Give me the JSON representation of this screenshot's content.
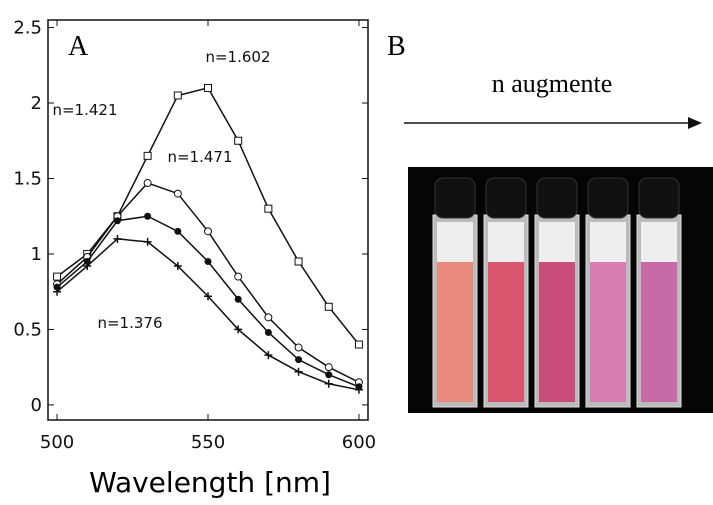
{
  "figure": {
    "labels": [
      "A",
      "B"
    ],
    "caption": "n augmente"
  },
  "chart_data": {
    "type": "line",
    "x_label": "Wavelength [nm]",
    "x": [
      500,
      510,
      520,
      530,
      540,
      550,
      560,
      570,
      580,
      590,
      600
    ],
    "series": [
      {
        "name": "n=1.602",
        "color": "#111111",
        "marker": "square",
        "values": [
          0.85,
          1.0,
          1.25,
          1.65,
          2.05,
          2.1,
          1.75,
          1.3,
          0.95,
          0.65,
          0.4
        ]
      },
      {
        "name": "n=1.471",
        "color": "#111111",
        "marker": "circle",
        "values": [
          0.8,
          0.98,
          1.25,
          1.47,
          1.4,
          1.15,
          0.85,
          0.58,
          0.38,
          0.25,
          0.15
        ]
      },
      {
        "name": "n=1.421",
        "color": "#111111",
        "marker": "dot",
        "values": [
          0.78,
          0.95,
          1.22,
          1.25,
          1.15,
          0.95,
          0.7,
          0.48,
          0.3,
          0.2,
          0.12
        ]
      },
      {
        "name": "n=1.376",
        "color": "#111111",
        "marker": "plus",
        "values": [
          0.75,
          0.92,
          1.1,
          1.08,
          0.92,
          0.72,
          0.5,
          0.33,
          0.22,
          0.14,
          0.1
        ]
      }
    ],
    "xlim": [
      497,
      603
    ],
    "xticks": [
      500,
      550,
      600
    ],
    "ylim": [
      -0.1,
      2.55
    ],
    "yticks": [
      0,
      0.5,
      1,
      1.5,
      2,
      2.5
    ]
  }
}
